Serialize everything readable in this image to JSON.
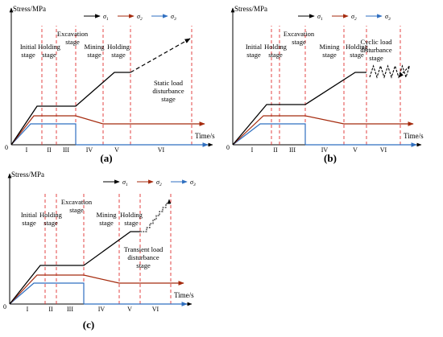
{
  "legend": [
    {
      "symbol": "σ",
      "subscript": "1",
      "color": "#000000"
    },
    {
      "symbol": "σ",
      "subscript": "2",
      "color": "#a52a0d"
    },
    {
      "symbol": "σ",
      "subscript": "3",
      "color": "#2f6fc0"
    }
  ],
  "colors": {
    "sigma1": "#000000",
    "sigma2": "#a52a0d",
    "sigma3": "#2f6fc0",
    "divider": "#e03030"
  },
  "axis": {
    "y_label": "Stress/MPa",
    "x_label": "Time/s",
    "origin": "0"
  },
  "romans": [
    "I",
    "II",
    "III",
    "IV",
    "V",
    "VI"
  ],
  "stages": {
    "initial": [
      "Initial",
      "stage"
    ],
    "holding": [
      "Holding",
      "stage"
    ],
    "excavation": [
      "Excavation",
      "stage"
    ],
    "mining": [
      "Mining",
      "stage"
    ],
    "holding2": [
      "Holding",
      "stage"
    ]
  },
  "panels": [
    {
      "caption": "(a)",
      "disturbance": [
        "Static load",
        "disturbance",
        "stage"
      ]
    },
    {
      "caption": "(b)",
      "disturbance": [
        "Cyclic load",
        "disturbance",
        "stage"
      ]
    },
    {
      "caption": "(c)",
      "disturbance": [
        "Transient load",
        "disturbance",
        "stage"
      ]
    }
  ]
}
